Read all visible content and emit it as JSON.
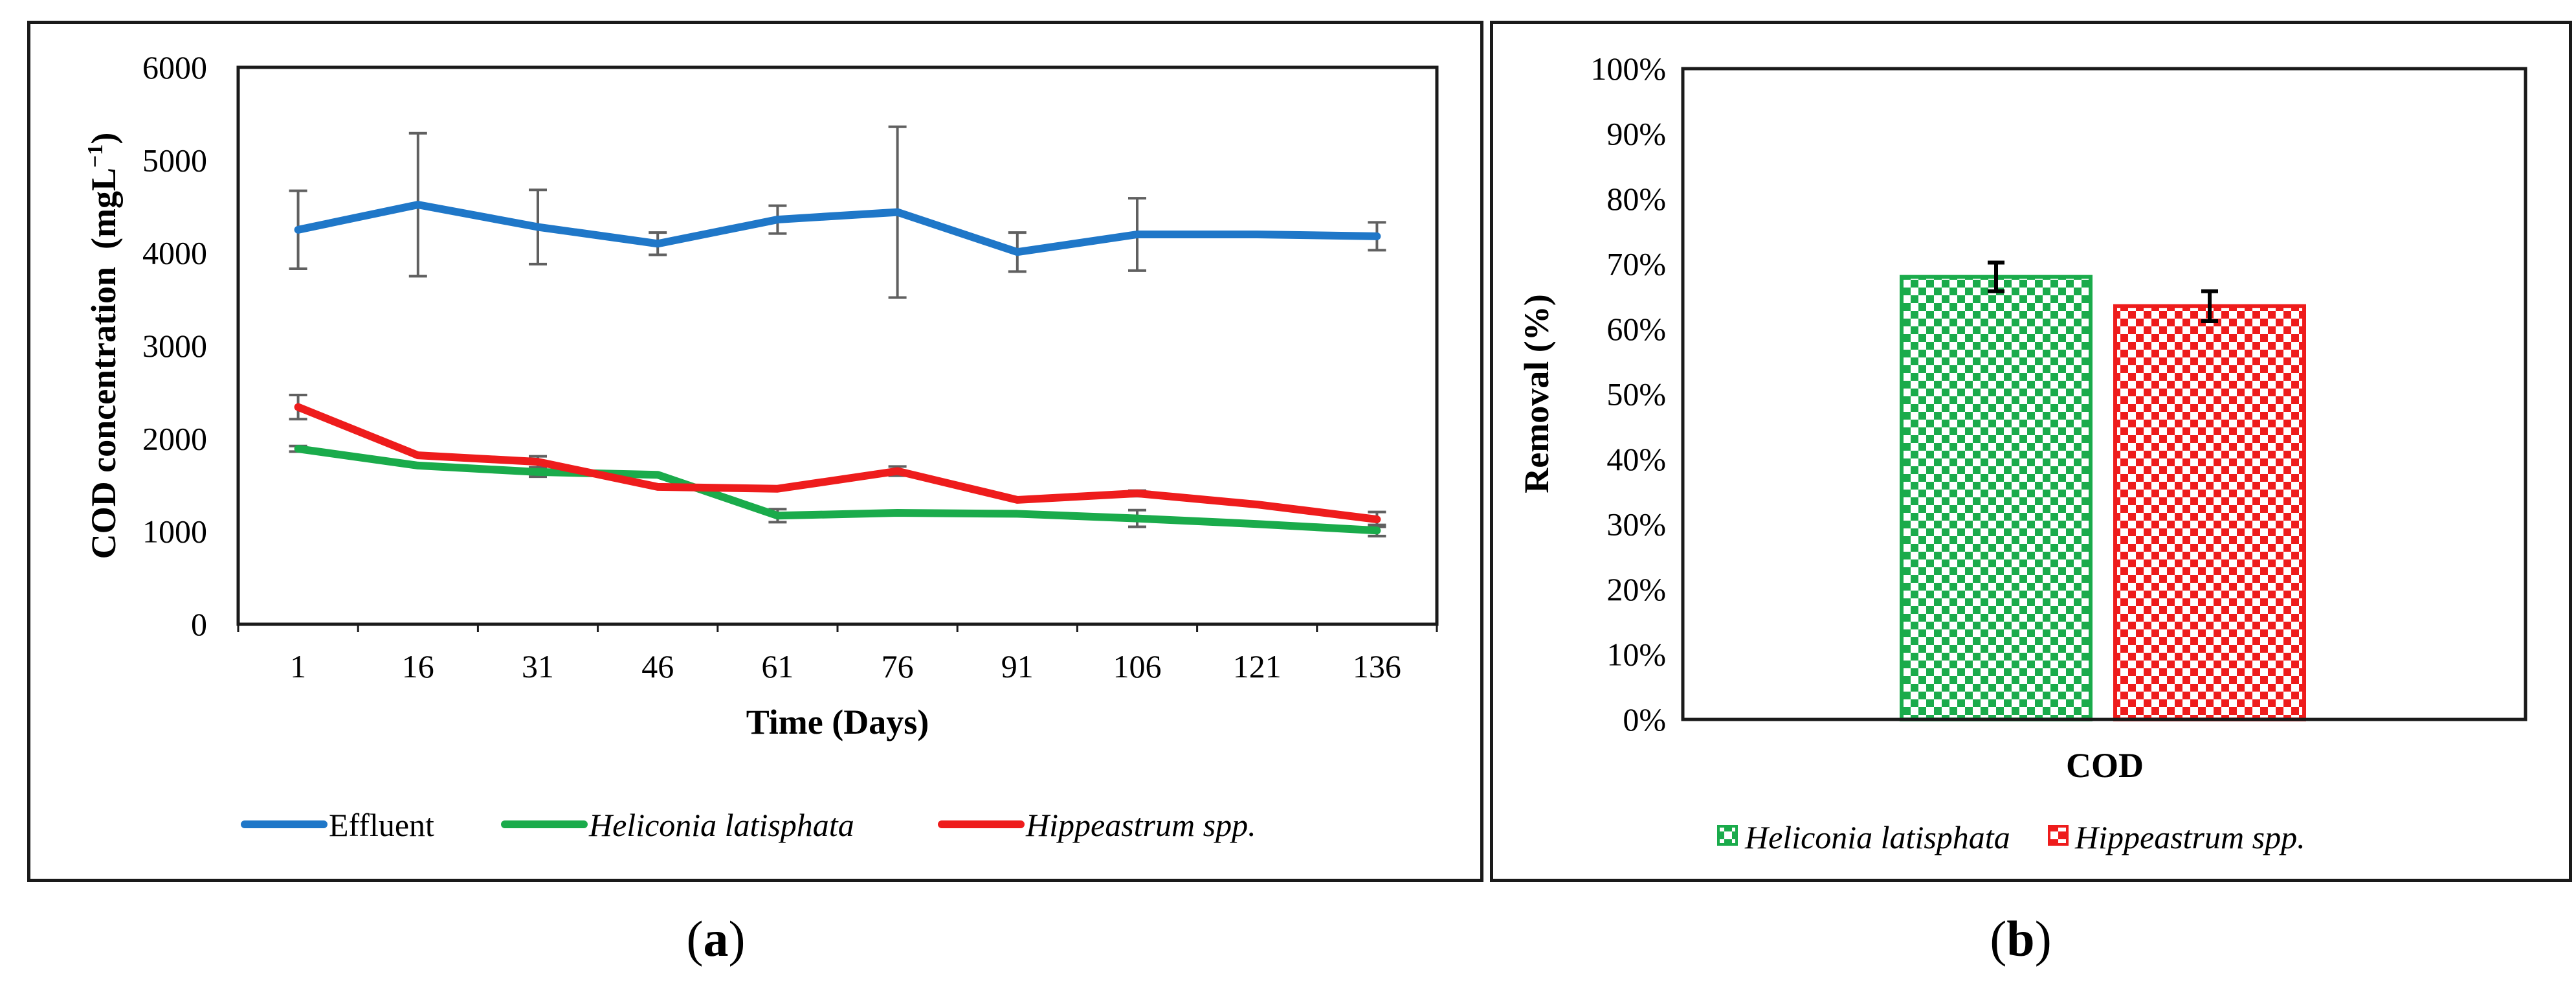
{
  "colors": {
    "effluent": "#1f77c8",
    "heliconia": "#1aab4b",
    "hippeastrum": "#ee1c1c",
    "errorbar_a": "#606060",
    "errorbar_b": "#000000",
    "frame": "#1a1a1a"
  },
  "chart_data": [
    {
      "panel": "a",
      "type": "line",
      "title": "",
      "xlabel": "Time (Days)",
      "ylabel": "COD concentration (mgL⁻¹)",
      "ylabel_main": "COD concentration ",
      "ylabel_unit_open": " (mgL",
      "ylabel_unit_sup": "−1",
      "ylabel_unit_close": ")",
      "ylim": [
        0,
        6000
      ],
      "yticks": [
        0,
        1000,
        2000,
        3000,
        4000,
        5000,
        6000
      ],
      "x": [
        1,
        16,
        31,
        46,
        61,
        76,
        91,
        106,
        121,
        136
      ],
      "series": [
        {
          "name": "Effluent",
          "italic": false,
          "color": "#1f77c8",
          "values": [
            4250,
            4520,
            4280,
            4100,
            4360,
            4440,
            4010,
            4200,
            4200,
            4180
          ],
          "errors": [
            420,
            770,
            400,
            120,
            150,
            920,
            210,
            390,
            0,
            150
          ]
        },
        {
          "name": "Heliconia latisphata",
          "italic": true,
          "color": "#1aab4b",
          "values": [
            1890,
            1710,
            1640,
            1610,
            1170,
            1200,
            1190,
            1140,
            1080,
            1010
          ],
          "errors": [
            30,
            0,
            50,
            0,
            70,
            0,
            0,
            90,
            0,
            60
          ]
        },
        {
          "name": "Hippeastrum spp.",
          "italic": true,
          "color": "#ee1c1c",
          "values": [
            2340,
            1820,
            1750,
            1480,
            1460,
            1650,
            1340,
            1410,
            1290,
            1130
          ],
          "errors": [
            130,
            0,
            60,
            0,
            0,
            50,
            0,
            30,
            0,
            80
          ]
        }
      ],
      "legend_position": "bottom"
    },
    {
      "panel": "b",
      "type": "bar",
      "title": "",
      "xlabel": "COD",
      "ylabel": "Removal (%)",
      "ylim": [
        0,
        100
      ],
      "yticks": [
        0,
        10,
        20,
        30,
        40,
        50,
        60,
        70,
        80,
        90,
        100
      ],
      "tick_suffix": "%",
      "categories": [
        "COD"
      ],
      "series": [
        {
          "name": "Heliconia latisphata",
          "italic": true,
          "color": "#1aab4b",
          "values": [
            68
          ],
          "errors": [
            2.2
          ]
        },
        {
          "name": "Hippeastrum spp.",
          "italic": true,
          "color": "#ee1c1c",
          "values": [
            63.5
          ],
          "errors": [
            2.3
          ]
        }
      ],
      "pattern": "checkerboard",
      "legend_position": "bottom"
    }
  ],
  "captions": {
    "a": {
      "open": "(",
      "letter": "a",
      "close": ")"
    },
    "b": {
      "open": "(",
      "letter": "b",
      "close": ")"
    }
  }
}
